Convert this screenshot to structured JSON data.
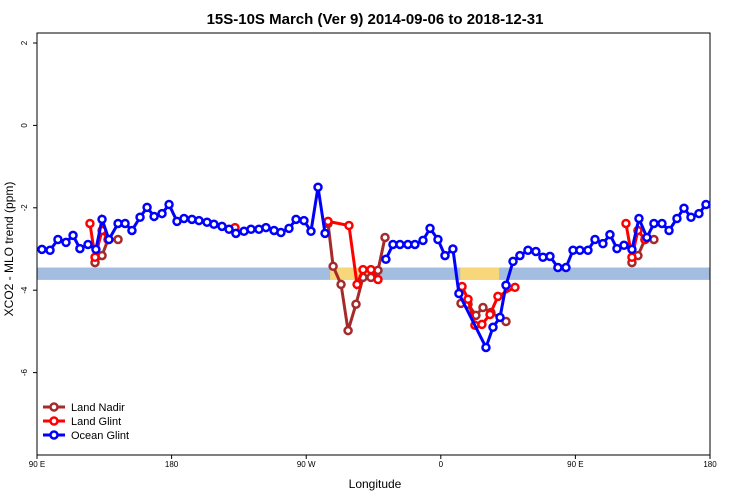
{
  "chart_data": {
    "type": "line",
    "title": "15S-10S March (Ver 9)   2014-09-06 to 2018-12-31",
    "x_label": "Longitude",
    "y_label": "XCO2 - MLO trend (ppm)",
    "xlim": [
      90,
      540
    ],
    "xticks": [
      {
        "value": 90,
        "label": "90 E"
      },
      {
        "value": 180,
        "label": "180"
      },
      {
        "value": 270,
        "label": "90 W"
      },
      {
        "value": 360,
        "label": "0"
      },
      {
        "value": 450,
        "label": "90 E"
      },
      {
        "value": 540,
        "label": "180"
      }
    ],
    "ylim": [
      -8,
      2
    ],
    "yticks": [
      2,
      0,
      -2,
      -4,
      -6
    ],
    "legend": "bottom-left",
    "band": {
      "ylim": [
        -3.75,
        -3.45
      ],
      "color": "#a3bde0"
    },
    "land": {
      "color": "#f8d77a",
      "ranges": [
        [
          286,
          319
        ],
        [
          373,
          399
        ]
      ]
    },
    "series": [
      {
        "name": "Land Nadir",
        "color": "#a52a2a",
        "x": [
          128.8,
          133.5,
          137.5,
          144.2,
          null,
          284.6,
          288.0,
          293.3,
          298.0,
          303.3,
          308.0,
          313.3,
          318.0,
          322.7,
          null,
          373.5,
          378.2,
          383.5,
          388.2,
          393.5,
          403.6,
          null,
          487.8,
          491.8,
          496.5,
          502.5
        ],
        "values": [
          -3.33,
          -3.16,
          -2.77,
          -2.77,
          null,
          -2.38,
          -3.42,
          -3.86,
          -4.98,
          -4.34,
          -3.69,
          -3.69,
          -3.52,
          -2.72,
          null,
          -4.32,
          -4.34,
          -4.61,
          -4.42,
          -4.54,
          -4.76,
          null,
          -3.33,
          -3.16,
          -2.77,
          -2.77
        ]
      },
      {
        "name": "Land Glint",
        "color": "#ff0000",
        "x": [
          125.4,
          128.8,
          133.5,
          137.5,
          null,
          222.4,
          null,
          284.6,
          298.6,
          304.0,
          308.0,
          313.3,
          318.0,
          null,
          374.2,
          378.2,
          382.8,
          387.5,
          392.9,
          398.2,
          409.6,
          null,
          483.8,
          487.8,
          491.8,
          496.5
        ],
        "values": [
          -2.38,
          -3.2,
          -2.55,
          -2.77,
          null,
          -2.48,
          null,
          -2.33,
          -2.43,
          -3.86,
          -3.5,
          -3.5,
          -3.74,
          null,
          -3.91,
          -4.22,
          -4.85,
          -4.83,
          -4.59,
          -4.15,
          -3.93,
          null,
          -2.38,
          -3.2,
          -2.55,
          -2.77
        ]
      },
      {
        "name": "Ocean Glint",
        "color": "#0000ff",
        "x": [
          93.3,
          98.7,
          104.0,
          109.4,
          114.1,
          118.7,
          124.1,
          129.4,
          133.5,
          138.1,
          144.2,
          148.9,
          153.5,
          158.9,
          163.6,
          168.3,
          173.6,
          178.3,
          183.6,
          188.3,
          193.6,
          198.3,
          203.7,
          208.3,
          213.7,
          218.4,
          223.0,
          228.4,
          233.1,
          238.4,
          243.1,
          248.5,
          253.1,
          258.5,
          263.2,
          268.5,
          273.2,
          277.9,
          282.6,
          null,
          323.3,
          328.0,
          332.7,
          338.0,
          342.7,
          348.1,
          352.8,
          358.1,
          362.8,
          368.1,
          372.1,
          390.2,
          394.9,
          399.6,
          403.6,
          408.3,
          412.9,
          418.3,
          423.6,
          428.3,
          433.0,
          438.3,
          443.7,
          448.4,
          453.0,
          458.4,
          463.1,
          468.4,
          473.1,
          477.8,
          482.5,
          487.8,
          492.5,
          497.8,
          502.5,
          507.9,
          512.6,
          517.9,
          522.6,
          527.3,
          532.6,
          537.3
        ],
        "values": [
          -3.01,
          -3.03,
          -2.77,
          -2.84,
          -2.67,
          -2.99,
          -2.89,
          -3.01,
          -2.28,
          -2.77,
          -2.38,
          -2.38,
          -2.55,
          -2.23,
          -1.99,
          -2.21,
          -2.14,
          -1.92,
          -2.33,
          -2.26,
          -2.28,
          -2.31,
          -2.35,
          -2.4,
          -2.45,
          -2.52,
          -2.62,
          -2.57,
          -2.52,
          -2.52,
          -2.48,
          -2.55,
          -2.6,
          -2.5,
          -2.28,
          -2.31,
          -2.57,
          -1.5,
          -2.62,
          null,
          -3.25,
          -2.89,
          -2.89,
          -2.89,
          -2.89,
          -2.79,
          -2.5,
          -2.77,
          -3.16,
          -3.0,
          -4.08,
          -5.39,
          -4.9,
          -4.66,
          -3.88,
          -3.3,
          -3.16,
          -3.03,
          -3.06,
          -3.2,
          -3.18,
          -3.45,
          -3.45,
          -3.03,
          -3.03,
          -3.03,
          -2.77,
          -2.87,
          -2.65,
          -2.99,
          -2.91,
          -3.01,
          -2.26,
          -2.72,
          -2.38,
          -2.38,
          -2.55,
          -2.26,
          -2.01,
          -2.23,
          -2.14,
          -1.92
        ]
      }
    ]
  }
}
